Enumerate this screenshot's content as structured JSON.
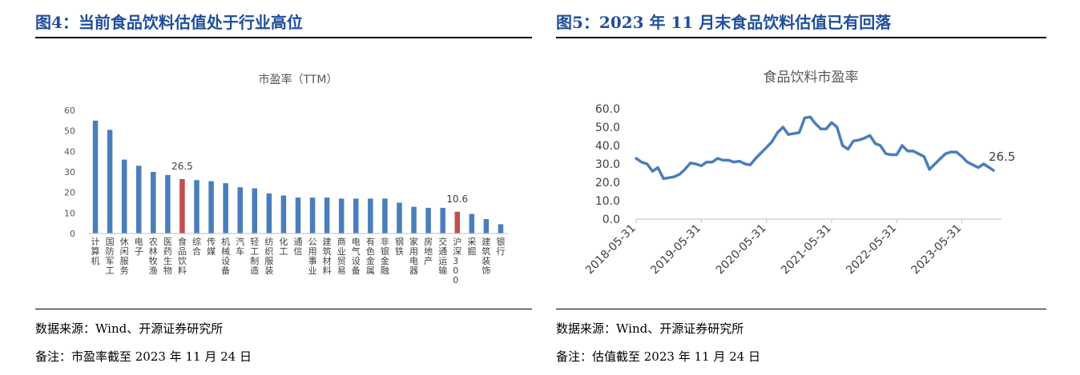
{
  "left": {
    "figure_title": "图4：当前食品饮料估值处于行业高位",
    "source": "数据来源：Wind、开源证券研究所",
    "note": "备注：市盈率截至 2023 年 11 月 24 日"
  },
  "right": {
    "figure_title": "图5：2023 年 11 月末食品饮料估值已有回落",
    "source": "数据来源：Wind、开源证券研究所",
    "note": "备注：估值截至 2023 年 11 月 24 日"
  },
  "colors": {
    "title": "#1f4e9a",
    "bar": "#4a7ebb",
    "highlight": "#c0504d",
    "line": "#4a7ebb"
  },
  "chart_data": [
    {
      "type": "bar",
      "title": "市盈率（TTM）",
      "xlabel": "",
      "ylabel": "",
      "ylim": [
        0,
        60
      ],
      "yticks": [
        "0",
        "10",
        "20",
        "30",
        "40",
        "50",
        "60"
      ],
      "categories": [
        "计算机",
        "国防军工",
        "休闲服务",
        "电子",
        "农林牧渔",
        "医药生物",
        "食品饮料",
        "综合",
        "传媒",
        "机械设备",
        "汽车",
        "轻工制造",
        "纺织服装",
        "化工",
        "通信",
        "公用事业",
        "建筑材料",
        "商业贸易",
        "电气设备",
        "有色金属",
        "非银金融",
        "钢铁",
        "家用电器",
        "房地产",
        "交通运输",
        "沪深300",
        "采掘",
        "建筑装饰",
        "银行"
      ],
      "values": [
        55,
        50.5,
        36,
        33,
        30,
        28.5,
        26.5,
        26,
        25.5,
        24.5,
        22.5,
        22,
        19.5,
        18.5,
        17.5,
        17.5,
        17.5,
        17,
        17,
        17,
        17,
        15,
        13,
        12.5,
        12.5,
        10.6,
        9.5,
        7,
        4.5
      ],
      "highlight": [
        "食品饮料",
        "沪深300"
      ],
      "data_labels": [
        {
          "category": "食品饮料",
          "text": "26.5"
        },
        {
          "category": "沪深300",
          "text": "10.6"
        }
      ],
      "grid": false,
      "legend": "none"
    },
    {
      "type": "line",
      "title": "食品饮料市盈率",
      "xlabel": "",
      "ylabel": "",
      "ylim": [
        0,
        60
      ],
      "yticks": [
        "0.0",
        "10.0",
        "20.0",
        "30.0",
        "40.0",
        "50.0",
        "60.0"
      ],
      "xticks": [
        "2018-05-31",
        "2019-05-31",
        "2020-05-31",
        "2021-05-31",
        "2022-05-31",
        "2023-05-31"
      ],
      "x": [
        "2018-05-31",
        "2018-06-30",
        "2018-07-31",
        "2018-08-31",
        "2018-09-30",
        "2018-10-31",
        "2018-11-30",
        "2018-12-31",
        "2019-01-31",
        "2019-02-28",
        "2019-03-31",
        "2019-04-30",
        "2019-05-31",
        "2019-06-30",
        "2019-07-31",
        "2019-08-31",
        "2019-09-30",
        "2019-10-31",
        "2019-11-30",
        "2019-12-31",
        "2020-01-31",
        "2020-02-29",
        "2020-03-31",
        "2020-04-30",
        "2020-05-31",
        "2020-06-30",
        "2020-07-31",
        "2020-08-31",
        "2020-09-30",
        "2020-10-31",
        "2020-11-30",
        "2020-12-31",
        "2021-01-31",
        "2021-02-28",
        "2021-03-31",
        "2021-04-30",
        "2021-05-31",
        "2021-06-30",
        "2021-07-31",
        "2021-08-31",
        "2021-09-30",
        "2021-10-31",
        "2021-11-30",
        "2021-12-31",
        "2022-01-31",
        "2022-02-28",
        "2022-03-31",
        "2022-04-30",
        "2022-05-31",
        "2022-06-30",
        "2022-07-31",
        "2022-08-31",
        "2022-09-30",
        "2022-10-31",
        "2022-11-30",
        "2022-12-31",
        "2023-01-31",
        "2023-02-28",
        "2023-03-31",
        "2023-04-30",
        "2023-05-31",
        "2023-06-30",
        "2023-07-31",
        "2023-08-31",
        "2023-09-30",
        "2023-10-31",
        "2023-11-24"
      ],
      "series": [
        {
          "values": [
            33,
            31,
            30,
            26,
            28,
            22,
            22.5,
            23,
            24.5,
            27,
            30.5,
            30,
            29,
            31,
            31,
            33,
            32,
            32,
            31,
            31.5,
            30,
            29.5,
            33,
            36,
            39,
            42,
            47,
            50,
            46,
            46.5,
            47,
            55,
            55.5,
            52,
            49,
            49,
            52.5,
            50,
            40,
            38,
            42.5,
            43,
            44,
            45.5,
            41,
            40,
            35.5,
            35,
            35,
            40,
            37,
            37,
            35.5,
            34,
            27,
            30,
            33,
            35.5,
            36.5,
            36.5,
            34,
            31,
            29.5,
            28,
            30,
            28,
            26.5
          ]
        }
      ],
      "data_labels": [
        {
          "text": "26.5"
        }
      ],
      "grid": false,
      "legend": "none"
    }
  ]
}
